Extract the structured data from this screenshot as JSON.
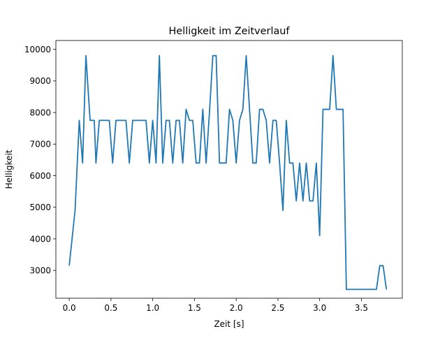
{
  "chart_data": {
    "type": "line",
    "title": "Helligkeit im Zeitverlauf",
    "xlabel": "Zeit [s]",
    "ylabel": "Helligkeit",
    "xlim": [
      -0.16,
      3.99
    ],
    "ylim": [
      2120,
      10280
    ],
    "xticks": [
      0.0,
      0.5,
      1.0,
      1.5,
      2.0,
      2.5,
      3.0,
      3.5
    ],
    "xtick_labels": [
      "0.0",
      "0.5",
      "1.0",
      "1.5",
      "2.0",
      "2.5",
      "3.0",
      "3.5"
    ],
    "yticks": [
      3000,
      4000,
      5000,
      6000,
      7000,
      8000,
      9000,
      10000
    ],
    "ytick_labels": [
      "3000",
      "4000",
      "5000",
      "6000",
      "7000",
      "8000",
      "9000",
      "10000"
    ],
    "grid": false,
    "legend": "none",
    "series": [
      {
        "color": "#1f77b4",
        "points": [
          [
            0.0,
            3150
          ],
          [
            0.07,
            4900
          ],
          [
            0.12,
            7750
          ],
          [
            0.16,
            6400
          ],
          [
            0.2,
            9800
          ],
          [
            0.25,
            7750
          ],
          [
            0.3,
            7750
          ],
          [
            0.32,
            6400
          ],
          [
            0.36,
            7750
          ],
          [
            0.4,
            7750
          ],
          [
            0.45,
            7750
          ],
          [
            0.48,
            7750
          ],
          [
            0.52,
            6400
          ],
          [
            0.56,
            7750
          ],
          [
            0.6,
            7750
          ],
          [
            0.64,
            7750
          ],
          [
            0.68,
            7750
          ],
          [
            0.72,
            6400
          ],
          [
            0.76,
            7750
          ],
          [
            0.8,
            7750
          ],
          [
            0.84,
            7750
          ],
          [
            0.88,
            7750
          ],
          [
            0.92,
            7750
          ],
          [
            0.96,
            6400
          ],
          [
            1.0,
            7750
          ],
          [
            1.04,
            6400
          ],
          [
            1.08,
            9800
          ],
          [
            1.12,
            6400
          ],
          [
            1.16,
            7750
          ],
          [
            1.2,
            7750
          ],
          [
            1.24,
            6400
          ],
          [
            1.28,
            7750
          ],
          [
            1.32,
            7750
          ],
          [
            1.36,
            6400
          ],
          [
            1.4,
            8100
          ],
          [
            1.44,
            7750
          ],
          [
            1.48,
            7750
          ],
          [
            1.52,
            6400
          ],
          [
            1.56,
            6400
          ],
          [
            1.6,
            8100
          ],
          [
            1.64,
            6400
          ],
          [
            1.68,
            8000
          ],
          [
            1.72,
            9800
          ],
          [
            1.76,
            9800
          ],
          [
            1.8,
            6400
          ],
          [
            1.84,
            6400
          ],
          [
            1.88,
            6400
          ],
          [
            1.92,
            8100
          ],
          [
            1.96,
            7750
          ],
          [
            2.0,
            6400
          ],
          [
            2.04,
            7750
          ],
          [
            2.08,
            8100
          ],
          [
            2.12,
            9800
          ],
          [
            2.16,
            8100
          ],
          [
            2.2,
            6400
          ],
          [
            2.24,
            6400
          ],
          [
            2.28,
            8100
          ],
          [
            2.32,
            8100
          ],
          [
            2.36,
            7750
          ],
          [
            2.4,
            6400
          ],
          [
            2.44,
            7750
          ],
          [
            2.48,
            7750
          ],
          [
            2.52,
            6400
          ],
          [
            2.56,
            4900
          ],
          [
            2.6,
            7750
          ],
          [
            2.64,
            6400
          ],
          [
            2.68,
            6400
          ],
          [
            2.72,
            5200
          ],
          [
            2.76,
            6400
          ],
          [
            2.8,
            5200
          ],
          [
            2.84,
            6400
          ],
          [
            2.88,
            5200
          ],
          [
            2.92,
            5200
          ],
          [
            2.96,
            6400
          ],
          [
            3.0,
            4100
          ],
          [
            3.04,
            8100
          ],
          [
            3.08,
            8100
          ],
          [
            3.12,
            8100
          ],
          [
            3.16,
            9800
          ],
          [
            3.2,
            8100
          ],
          [
            3.24,
            8100
          ],
          [
            3.28,
            8100
          ],
          [
            3.32,
            2400
          ],
          [
            3.36,
            2400
          ],
          [
            3.4,
            2400
          ],
          [
            3.44,
            2400
          ],
          [
            3.48,
            2400
          ],
          [
            3.52,
            2400
          ],
          [
            3.56,
            2400
          ],
          [
            3.6,
            2400
          ],
          [
            3.64,
            2400
          ],
          [
            3.68,
            2400
          ],
          [
            3.72,
            3150
          ],
          [
            3.76,
            3150
          ],
          [
            3.8,
            2400
          ]
        ]
      }
    ]
  }
}
